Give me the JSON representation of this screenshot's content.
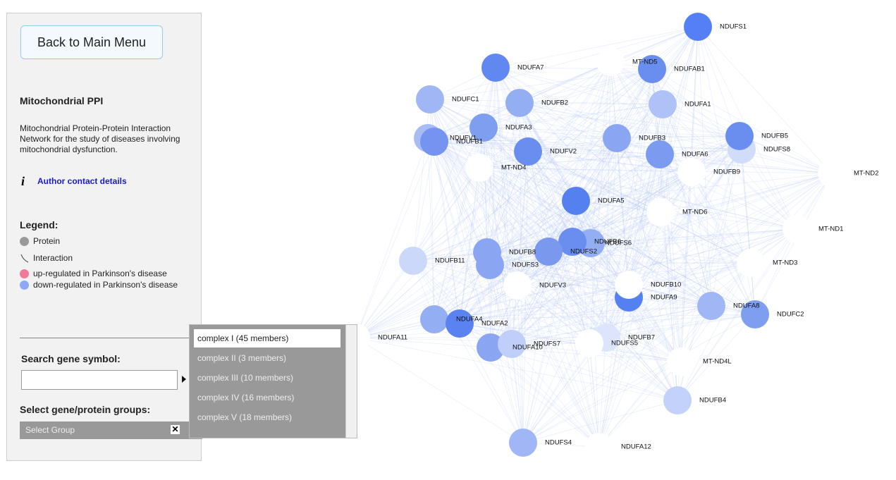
{
  "sidebar": {
    "back_button": "Back to Main Menu",
    "title": "Mitochondrial PPI",
    "description": "Mitochondrial Protein-Protein Interaction Network for the study of diseases involving mitochondrial dysfunction.",
    "info_icon": "i",
    "author_link": "Author contact details",
    "legend": {
      "title": "Legend:",
      "items": [
        {
          "label": "Protein",
          "color": "#999999"
        },
        {
          "label": "Interaction"
        },
        {
          "label": "up-regulated in Parkinson's disease",
          "color": "#f07a98"
        },
        {
          "label": "down-regulated in Parkinson's disease",
          "color": "#8ea8f4"
        }
      ]
    },
    "search_label": "Search gene symbol:",
    "groups_label": "Select gene/protein groups:",
    "select_placeholder": "Select Group",
    "clear_icon": "✕",
    "options": [
      "complex I (45 members)",
      "complex II (3 members)",
      "complex III (10 members)",
      "complex IV (16 members)",
      "complex V (18 members)"
    ]
  },
  "network": {
    "nodes": [
      {
        "label": "NDUFS1",
        "color": "#5580f5"
      },
      {
        "label": "NDUFA7",
        "color": "#6088f0"
      },
      {
        "label": "MT-ND5",
        "color": "#ffffff"
      },
      {
        "label": "NDUFAB1",
        "color": "#6a8ef0"
      },
      {
        "label": "NDUFC1",
        "color": "#a0b6f5"
      },
      {
        "label": "NDUFB2",
        "color": "#94aef3"
      },
      {
        "label": "NDUFA1",
        "color": "#aec2f7"
      },
      {
        "label": "NDUFA3",
        "color": "#7e9ef0"
      },
      {
        "label": "NDUFV1",
        "color": "#a8bcf5"
      },
      {
        "label": "NDUFB1",
        "color": "#7593f0"
      },
      {
        "label": "NDUFB3",
        "color": "#8aa6f2"
      },
      {
        "label": "NDUFS8",
        "color": "#d0dcfa"
      },
      {
        "label": "NDUFB5",
        "color": "#6a8ef0"
      },
      {
        "label": "NDUFV2",
        "color": "#6a8ef0"
      },
      {
        "label": "NDUFA6",
        "color": "#7b9bf0"
      },
      {
        "label": "MT-ND4",
        "color": "#ffffff"
      },
      {
        "label": "NDUFB9",
        "color": "#ffffff"
      },
      {
        "label": "MT-ND2",
        "color": "#ffffff"
      },
      {
        "label": "NDUFA5",
        "color": "#5580f0"
      },
      {
        "label": "MT-ND6",
        "color": "#ffffff"
      },
      {
        "label": "MT-ND1",
        "color": "#ffffff"
      },
      {
        "label": "NDUFS6",
        "color": "#94aef3"
      },
      {
        "label": "NDUFB6",
        "color": "#6a8ef0"
      },
      {
        "label": "NDUFS2",
        "color": "#7a98ee"
      },
      {
        "label": "NDUFB8",
        "color": "#8aa6f2"
      },
      {
        "label": "NDUFB11",
        "color": "#cbd8fa"
      },
      {
        "label": "NDUFS3",
        "color": "#8aa6f2"
      },
      {
        "label": "MT-ND3",
        "color": "#ffffff"
      },
      {
        "label": "NDUFV3",
        "color": "#ffffff"
      },
      {
        "label": "NDUFA9",
        "color": "#5580f0"
      },
      {
        "label": "NDUFB10",
        "color": "#ffffff"
      },
      {
        "label": "NDUFA8",
        "color": "#a0b6f5"
      },
      {
        "label": "NDUFC2",
        "color": "#7e9ef0"
      },
      {
        "label": "NDUFA4",
        "color": "#94aef3"
      },
      {
        "label": "NDUFA2",
        "color": "#5a82f0"
      },
      {
        "label": "NDUFA11",
        "color": "#ffffff"
      },
      {
        "label": "NDUFA10",
        "color": "#8aa6f2"
      },
      {
        "label": "NDUFS7",
        "color": "#c0cffa"
      },
      {
        "label": "NDUFB7",
        "color": "#dce5fb"
      },
      {
        "label": "NDUFS5",
        "color": "#ffffff"
      },
      {
        "label": "MT-ND4L",
        "color": "#ffffff"
      },
      {
        "label": "NDUFB4",
        "color": "#c3d2fa"
      },
      {
        "label": "NDUFS4",
        "color": "#a0b6f5"
      },
      {
        "label": "NDUFA12",
        "color": "#ffffff"
      }
    ]
  }
}
